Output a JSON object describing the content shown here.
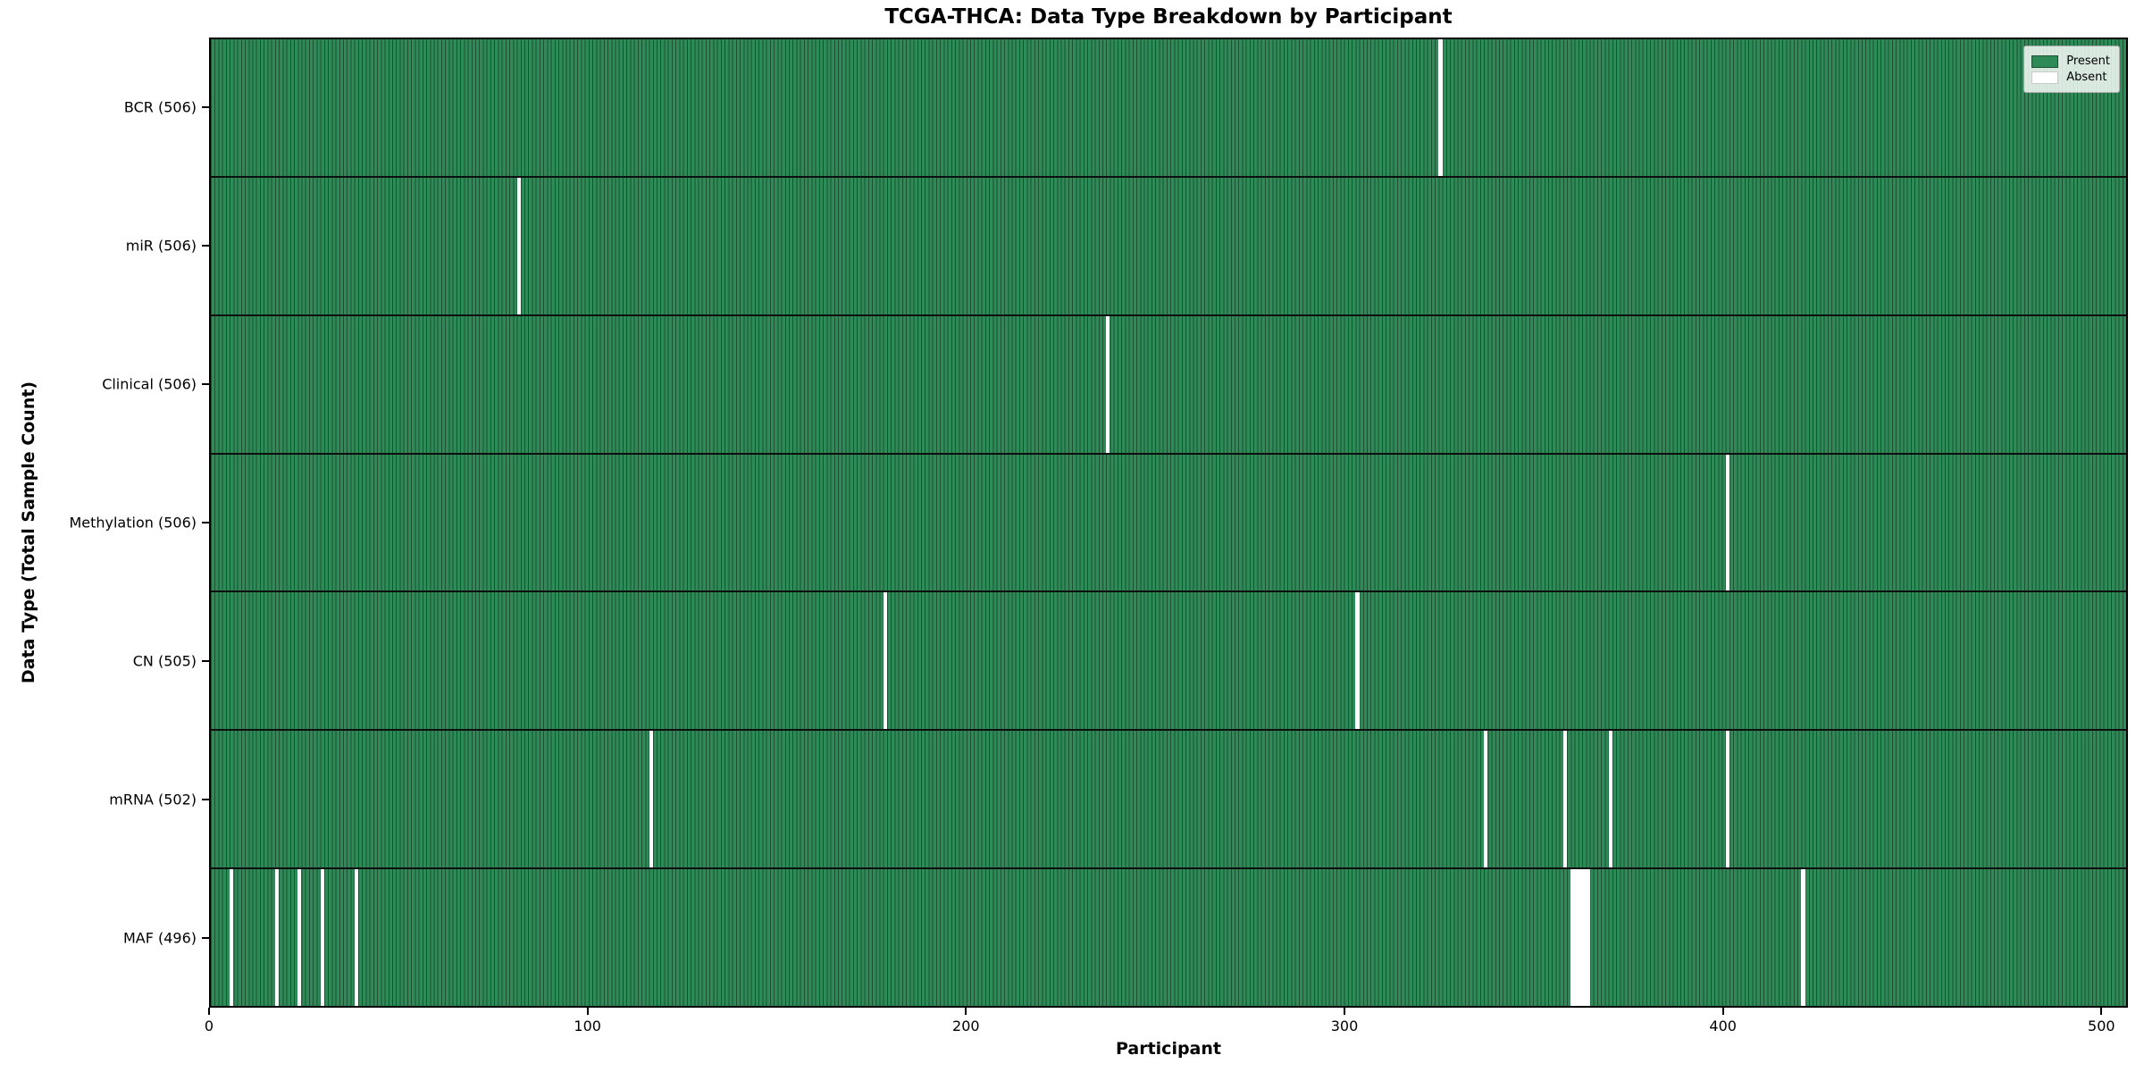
{
  "chart_data": {
    "type": "heatmap",
    "title": "TCGA-THCA: Data Type Breakdown by Participant",
    "xlabel": "Participant",
    "ylabel": "Data Type (Total Sample Count)",
    "x_ticks": [
      0,
      100,
      200,
      300,
      400,
      500
    ],
    "xlim": [
      0,
      507
    ],
    "n_participants": 507,
    "grid": false,
    "legend_position": "upper right",
    "legend": [
      {
        "label": "Present",
        "color": "#2e8b57"
      },
      {
        "label": "Absent",
        "color": "#ffffff"
      }
    ],
    "colors": {
      "present": "#2e8b57",
      "absent": "#ffffff",
      "bar_edge": "#1c5233",
      "row_divider": "#0e0e0e"
    },
    "rows": [
      {
        "label": "BCR (506)",
        "total": 506,
        "absent_participants": [
          325
        ]
      },
      {
        "label": "miR (506)",
        "total": 506,
        "absent_participants": [
          81
        ]
      },
      {
        "label": "Clinical (506)",
        "total": 506,
        "absent_participants": [
          237
        ]
      },
      {
        "label": "Methylation (506)",
        "total": 506,
        "absent_participants": [
          401
        ]
      },
      {
        "label": "CN (505)",
        "total": 505,
        "absent_participants": [
          178,
          303
        ]
      },
      {
        "label": "mRNA (502)",
        "total": 502,
        "absent_participants": [
          116,
          337,
          358,
          370,
          401
        ]
      },
      {
        "label": "MAF (496)",
        "total": 496,
        "absent_participants": [
          5,
          17,
          23,
          29,
          38,
          360,
          361,
          362,
          363,
          364,
          421
        ]
      }
    ]
  }
}
